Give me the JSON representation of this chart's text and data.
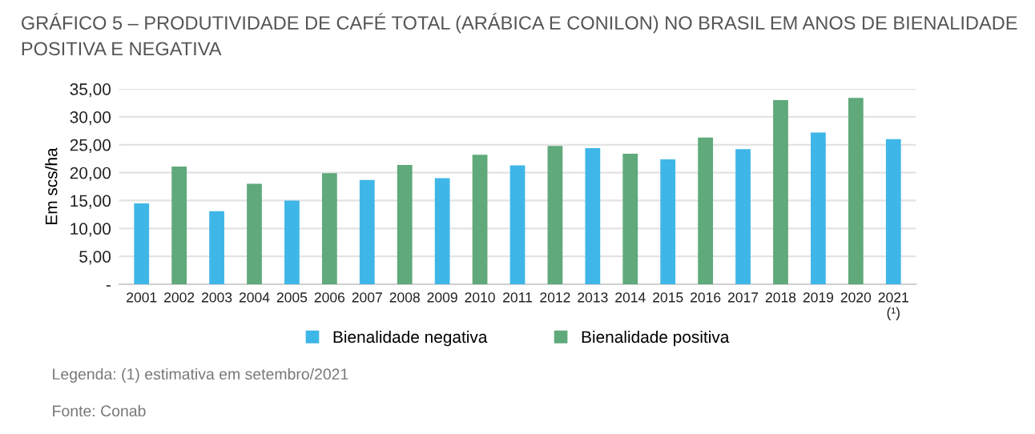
{
  "chart_data": {
    "type": "bar",
    "title": "GRÁFICO 5 – PRODUTIVIDADE DE CAFÉ TOTAL (ARÁBICA E CONILON) NO BRASIL EM ANOS DE BIENALIDADE POSITIVA E NEGATIVA",
    "ylabel": "Em scs/ha",
    "categories": [
      "2001",
      "2002",
      "2003",
      "2004",
      "2005",
      "2006",
      "2007",
      "2008",
      "2009",
      "2010",
      "2011",
      "2012",
      "2013",
      "2014",
      "2015",
      "2016",
      "2017",
      "2018",
      "2019",
      "2020",
      "2021\n(¹)"
    ],
    "series": [
      {
        "name": "Bienalidade negativa",
        "color": "#3fb6e8",
        "values": [
          14.5,
          null,
          13.1,
          null,
          15.0,
          null,
          18.7,
          null,
          19.0,
          null,
          21.3,
          null,
          24.4,
          null,
          22.4,
          null,
          24.2,
          null,
          27.2,
          null,
          26.0
        ]
      },
      {
        "name": "Bienalidade positiva",
        "color": "#5fa97a",
        "values": [
          null,
          21.1,
          null,
          18.0,
          null,
          19.9,
          null,
          21.4,
          null,
          23.2,
          null,
          24.8,
          null,
          23.4,
          null,
          26.3,
          null,
          33.0,
          null,
          33.4,
          null
        ]
      }
    ],
    "ylim": [
      0,
      35
    ],
    "yticks": [
      {
        "value": 0,
        "label": "-"
      },
      {
        "value": 5,
        "label": "5,00"
      },
      {
        "value": 10,
        "label": "10,00"
      },
      {
        "value": 15,
        "label": "15,00"
      },
      {
        "value": 20,
        "label": "20,00"
      },
      {
        "value": 25,
        "label": "25,00"
      },
      {
        "value": 30,
        "label": "30,00"
      },
      {
        "value": 35,
        "label": "35,00"
      }
    ],
    "grid": "y",
    "legend": "bottom",
    "annotations": [
      "Legenda: (1) estimativa em setembro/2021",
      "Fonte: Conab"
    ]
  }
}
